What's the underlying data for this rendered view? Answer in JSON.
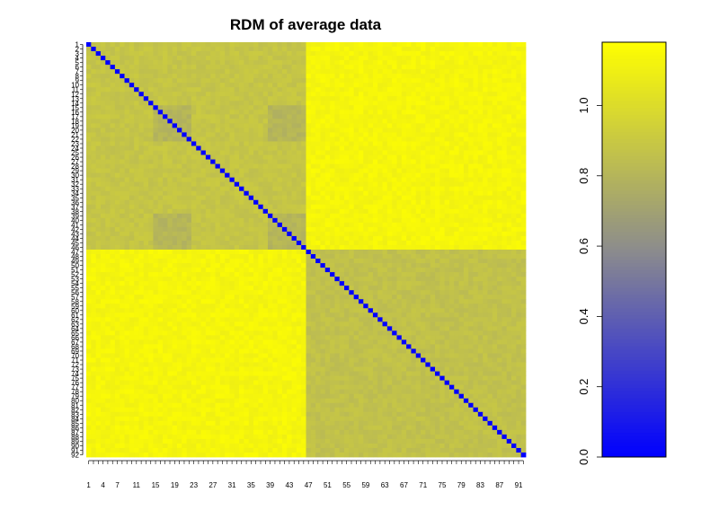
{
  "chart_data": {
    "type": "heatmap",
    "title": "RDM of average data",
    "n": 92,
    "cluster_sizes": [
      46,
      46
    ],
    "sub_blocks_within_first_cluster": [
      [
        1,
        8
      ],
      [
        9,
        14
      ],
      [
        15,
        22
      ],
      [
        23,
        30
      ],
      [
        31,
        38
      ],
      [
        39,
        46
      ]
    ],
    "value_model": {
      "diagonal": 0.0,
      "within_first_cluster": 0.88,
      "within_first_cluster_darker_subblocks": 0.8,
      "within_second_cluster": 0.86,
      "between_clusters": 1.13
    },
    "x_tick_labels": [
      "1",
      "4",
      "7",
      "11",
      "15",
      "19",
      "23",
      "27",
      "31",
      "35",
      "39",
      "43",
      "47",
      "51",
      "55",
      "59",
      "63",
      "67",
      "71",
      "75",
      "79",
      "83",
      "87",
      "91"
    ],
    "y_tick_labels": [
      "1",
      "2",
      "3",
      "4",
      "5",
      "6",
      "7",
      "8",
      "9",
      "10",
      "11",
      "12",
      "13",
      "14",
      "15",
      "16",
      "17",
      "18",
      "19",
      "20",
      "21",
      "22",
      "23",
      "24",
      "25",
      "26",
      "27",
      "28",
      "29",
      "30",
      "31",
      "32",
      "33",
      "34",
      "35",
      "36",
      "37",
      "38",
      "39",
      "40",
      "41",
      "42",
      "43",
      "44",
      "45",
      "46",
      "47",
      "48",
      "49",
      "50",
      "51",
      "52",
      "53",
      "54",
      "55",
      "56",
      "57",
      "58",
      "59",
      "60",
      "61",
      "62",
      "63",
      "64",
      "65",
      "66",
      "67",
      "68",
      "69",
      "70",
      "71",
      "72",
      "73",
      "74",
      "75",
      "76",
      "77",
      "78",
      "79",
      "80",
      "81",
      "82",
      "83",
      "84",
      "85",
      "86",
      "87",
      "88",
      "89",
      "90",
      "91",
      "92"
    ],
    "colorbar": {
      "range": [
        0.0,
        1.18
      ],
      "ticks": [
        0.0,
        0.2,
        0.4,
        0.6,
        0.8,
        1.0
      ],
      "tick_labels": [
        "0.0",
        "0.2",
        "0.4",
        "0.6",
        "0.8",
        "1.0"
      ],
      "colors": {
        "low": "#0000ff",
        "mid": "#8c8c8c",
        "high": "#ffff00"
      }
    }
  }
}
